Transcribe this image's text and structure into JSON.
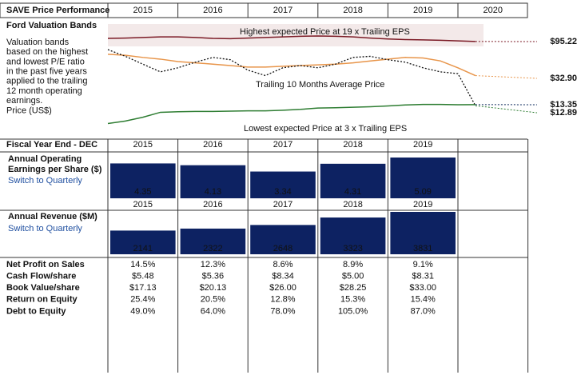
{
  "header": {
    "title": "SAVE Price Performance",
    "years": [
      "2015",
      "2016",
      "2017",
      "2018",
      "2019",
      "2020"
    ]
  },
  "valuation": {
    "title": "Ford Valuation Bands",
    "description": [
      "Valuation bands",
      "based on the highest",
      "and lowest P/E ratio",
      "in the past five years",
      "applied to the trailing",
      "12 month operating",
      "earnings.",
      "Price (US$)"
    ]
  },
  "chart_data": {
    "type": "line",
    "log_scale": true,
    "xlim": [
      2015,
      2021
    ],
    "ylim": [
      5.7,
      186
    ],
    "annotations": [
      "Highest expected Price at 19 x Trailing EPS",
      "Trailing 10 Months Average Price",
      "Lowest expected Price at 3 x Trailing EPS"
    ],
    "x": [
      2015,
      2015.25,
      2015.5,
      2015.75,
      2016,
      2016.25,
      2016.5,
      2016.75,
      2017,
      2017.25,
      2017.5,
      2017.75,
      2018,
      2018.25,
      2018.5,
      2018.75,
      2019,
      2019.25,
      2019.5,
      2019.75,
      2020,
      2020.25
    ],
    "series": [
      {
        "name": "Highest expected Price",
        "color": "#7b1a25",
        "values": [
          105,
          106,
          108,
          110,
          110,
          108,
          105,
          104,
          106,
          108,
          110,
          112,
          113,
          112,
          110,
          106,
          103,
          101,
          100,
          99,
          97,
          95.22
        ],
        "value_labels": [
          "$95.22"
        ]
      },
      {
        "name": "Trailing 10 Months Average Price",
        "color": "#e8954a",
        "values": [
          64,
          62,
          58,
          55,
          51,
          49,
          47,
          45,
          43,
          43,
          44,
          45,
          46,
          47,
          49,
          52,
          55,
          58,
          57,
          52,
          42,
          32.9
        ],
        "value_labels": [
          "$32.90"
        ]
      },
      {
        "name": "Price",
        "color": "#111111",
        "values": [
          74,
          60,
          47,
          37,
          42,
          50,
          58,
          54,
          39,
          33,
          42,
          45,
          42,
          47,
          58,
          60,
          54,
          50,
          42,
          37,
          35,
          12.89
        ],
        "value_labels": [
          "$12.89"
        ]
      },
      {
        "name": "Lowest expected Price",
        "color": "#2e7d32",
        "values": [
          7.4,
          8,
          9,
          10.5,
          10.7,
          10.8,
          10.8,
          10.9,
          11,
          11,
          11.2,
          11.5,
          12,
          12.1,
          12.3,
          12.5,
          12.8,
          13.2,
          13.4,
          13.4,
          13.3,
          13.35
        ],
        "value_labels": [
          "$13.35"
        ]
      }
    ]
  },
  "table": {
    "fiscal_label": "Fiscal Year End - DEC",
    "years": [
      "2015",
      "2016",
      "2017",
      "2018",
      "2019"
    ],
    "eps": {
      "title": [
        "Annual Operating",
        "Earnings per Share ($)"
      ],
      "link": "Switch to Quarterly",
      "values": [
        4.35,
        4.13,
        3.34,
        4.31,
        5.09
      ]
    },
    "revenue": {
      "title": [
        "Annual Revenue ($M)"
      ],
      "link": "Switch to Quarterly",
      "values": [
        2141,
        2322,
        2648,
        3323,
        3831
      ]
    },
    "rows": [
      [
        "Net Profit on Sales",
        "14.5%",
        "12.3%",
        "8.6%",
        "8.9%",
        "9.1%"
      ],
      [
        "Cash Flow/share",
        "$5.48",
        "$5.36",
        "$8.34",
        "$5.00",
        "$8.31"
      ],
      [
        "Book Value/share",
        "$17.13",
        "$20.13",
        "$26.00",
        "$28.25",
        "$33.00"
      ],
      [
        "Return on Equity",
        "25.4%",
        "20.5%",
        "12.8%",
        "15.3%",
        "15.4%"
      ],
      [
        "Debt to Equity",
        "49.0%",
        "64.0%",
        "78.0%",
        "105.0%",
        "87.0%"
      ]
    ]
  }
}
